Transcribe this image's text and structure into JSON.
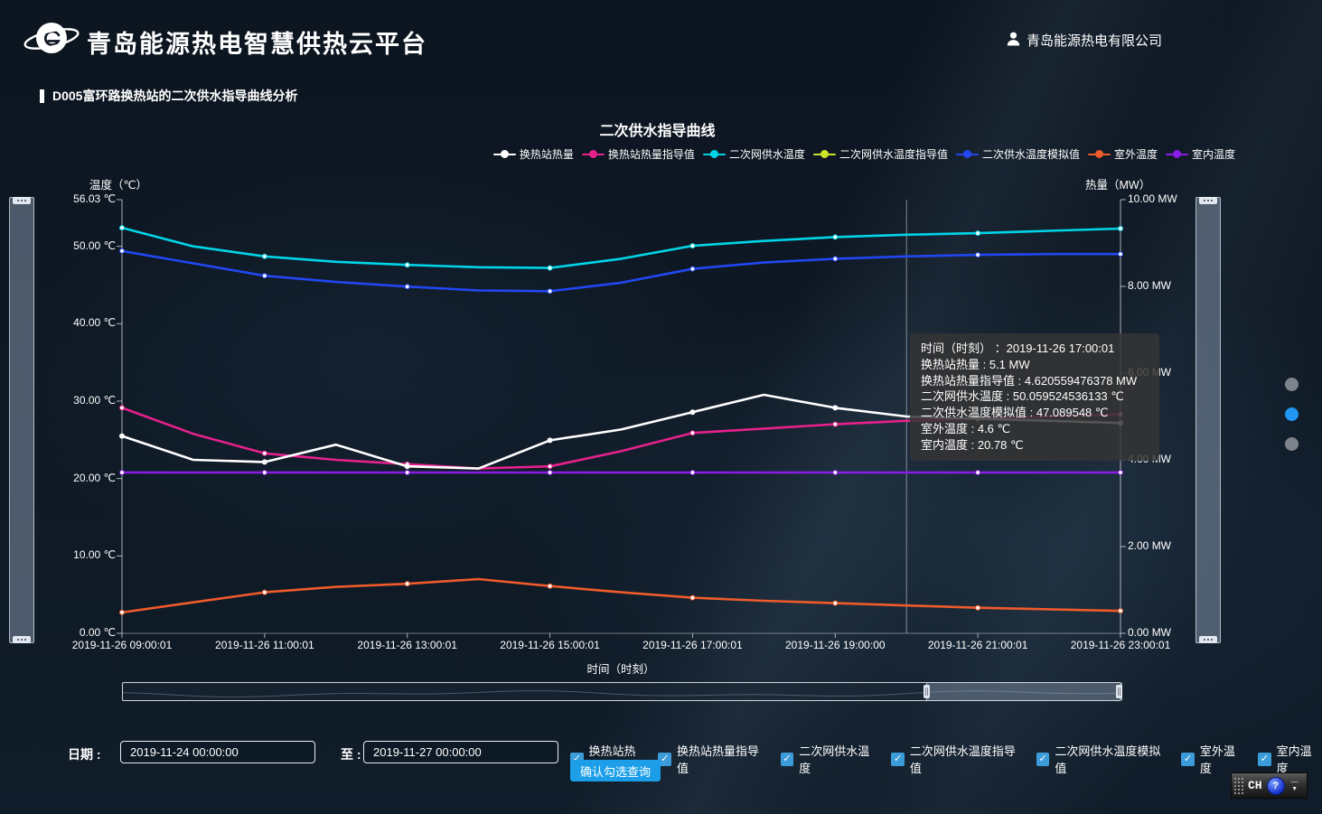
{
  "header": {
    "title": "青岛能源热电智慧供热云平台",
    "company": "青岛能源热电有限公司"
  },
  "page": {
    "section_title": "D005富环路换热站的二次供水指导曲线分析"
  },
  "chart_data": {
    "type": "line",
    "title": "二次供水指导曲线",
    "x_label": "时间（时刻）",
    "grid": false,
    "legend_position": "top-right",
    "crosshair_hour": 20,
    "y_left": {
      "label": "温度（℃）",
      "min": 0,
      "max": 56.03,
      "ticks": [
        {
          "label": "56.03 ℃",
          "value": 56.03
        },
        {
          "label": "50.00 ℃",
          "value": 50
        },
        {
          "label": "40.00 ℃",
          "value": 40
        },
        {
          "label": "30.00 ℃",
          "value": 30
        },
        {
          "label": "20.00 ℃",
          "value": 20
        },
        {
          "label": "10.00 ℃",
          "value": 10
        },
        {
          "label": "0.00 ℃",
          "value": 0
        }
      ]
    },
    "y_right": {
      "label": "热量（MW）",
      "min": 0,
      "max": 10,
      "ticks": [
        {
          "label": "10.00 MW",
          "value": 10
        },
        {
          "label": "8.00 MW",
          "value": 8
        },
        {
          "label": "6.00 MW",
          "value": 6
        },
        {
          "label": "4.00 MW",
          "value": 4
        },
        {
          "label": "2.00 MW",
          "value": 2
        },
        {
          "label": "0.00 MW",
          "value": 0
        }
      ]
    },
    "hours": [
      9,
      10,
      11,
      12,
      13,
      14,
      15,
      16,
      17,
      18,
      19,
      20,
      21,
      22,
      23
    ],
    "x_ticks": [
      "2019-11-26 09:00:01",
      "2019-11-26 11:00:01",
      "2019-11-26 13:00:01",
      "2019-11-26 15:00:01",
      "2019-11-26 17:00:01",
      "2019-11-26 19:00:00",
      "2019-11-26 21:00:01",
      "2019-11-26 23:00:01"
    ],
    "series": [
      {
        "name": "换热站热量",
        "color": "#ffffff",
        "axis": "mw",
        "unit": "MW",
        "visible": true,
        "values": [
          4.55,
          4.0,
          3.95,
          4.35,
          3.85,
          3.8,
          4.45,
          4.7,
          5.1,
          5.5,
          5.2,
          5.0,
          4.95,
          4.9,
          4.85
        ]
      },
      {
        "name": "换热站热量指导值",
        "color": "#e6218c",
        "axis": "mw",
        "unit": "MW",
        "visible": true,
        "values": [
          5.2,
          4.6,
          4.15,
          4.0,
          3.9,
          3.8,
          3.85,
          4.2,
          4.62,
          4.72,
          4.82,
          4.9,
          4.95,
          5.0,
          5.05
        ]
      },
      {
        "name": "二次网供水温度",
        "color": "#00d5e8",
        "axis": "temp",
        "unit": "℃",
        "visible": true,
        "values": [
          52.4,
          50.0,
          48.7,
          48.0,
          47.6,
          47.3,
          47.2,
          48.4,
          50.06,
          50.7,
          51.2,
          51.5,
          51.7,
          52.0,
          52.3
        ]
      },
      {
        "name": "二次网供水温度指导值",
        "color": "#cfe32b",
        "axis": "temp",
        "unit": "℃",
        "visible": false,
        "values": []
      },
      {
        "name": "二次供水温度模拟值",
        "color": "#2247f2",
        "axis": "temp",
        "unit": "℃",
        "visible": true,
        "values": [
          49.4,
          47.8,
          46.2,
          45.4,
          44.8,
          44.3,
          44.2,
          45.3,
          47.09,
          47.9,
          48.4,
          48.7,
          48.9,
          49.0,
          49.0
        ]
      },
      {
        "name": "室外温度",
        "color": "#ef5b2b",
        "axis": "temp",
        "unit": "℃",
        "visible": true,
        "values": [
          2.7,
          4.0,
          5.3,
          6.0,
          6.4,
          7.0,
          6.1,
          5.3,
          4.6,
          4.2,
          3.9,
          3.6,
          3.3,
          3.1,
          2.9
        ]
      },
      {
        "name": "室内温度",
        "color": "#8a1ce8",
        "axis": "temp",
        "unit": "℃",
        "visible": true,
        "values": [
          20.78,
          20.78,
          20.78,
          20.78,
          20.78,
          20.78,
          20.78,
          20.78,
          20.78,
          20.78,
          20.78,
          20.78,
          20.78,
          20.78,
          20.78
        ]
      }
    ]
  },
  "tooltip": {
    "lines": [
      "时间（时刻）  ：2019-11-26 17:00:01",
      "换热站热量 : 5.1 MW",
      "换热站热量指导值 : 4.620559476378 MW",
      "二次网供水温度 : 50.059524536133 ℃",
      "二次供水温度模拟值 : 47.089548 ℃",
      "室外温度 : 4.6 ℃",
      "室内温度 : 20.78 ℃"
    ]
  },
  "datazoom": {
    "start_pct": 80.5,
    "end_pct": 100
  },
  "pager": {
    "active_color": "#2196f3",
    "inactive_color": "#7d838a",
    "dots": [
      {
        "active": false
      },
      {
        "active": true
      },
      {
        "active": false
      }
    ]
  },
  "controls": {
    "date_label": "日期 :",
    "date_from": "2019-11-24 00:00:00",
    "to_label": "至 :",
    "date_to": "2019-11-27 00:00:00",
    "submit_label": "确认勾选查询",
    "checkboxes": [
      {
        "label": "换热站热量",
        "checked": true
      },
      {
        "label": "换热站热量指导值",
        "checked": true
      },
      {
        "label": "二次网供水温度",
        "checked": true
      },
      {
        "label": "二次网供水温度指导值",
        "checked": true
      },
      {
        "label": "二次网供水温度模拟值",
        "checked": true
      },
      {
        "label": "室外温度",
        "checked": true
      },
      {
        "label": "室内温度",
        "checked": true
      }
    ],
    "check_glyph": "✓"
  },
  "langbar": {
    "label": "CH",
    "help_icon": "?",
    "minimize_icon": "—",
    "menu_icon": "▼"
  }
}
